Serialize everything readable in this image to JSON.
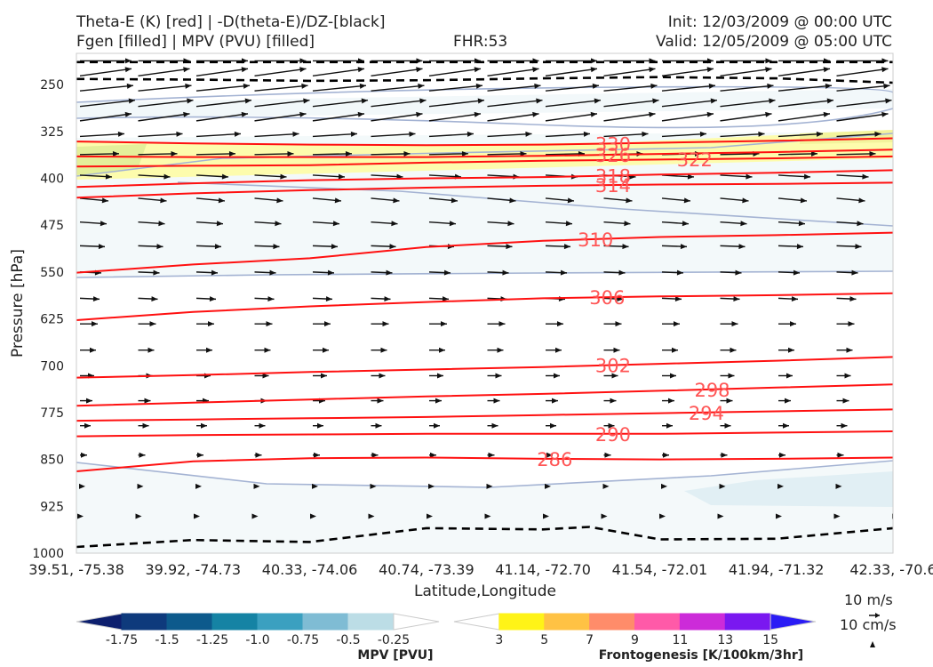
{
  "header": {
    "title_line1": "Theta-E (K) [red] | -D(theta-E)/DZ-[black]",
    "title_line2": "Fgen [filled] | MPV (PVU) [filled]",
    "fhr": "FHR:53",
    "init": "Init: 12/03/2009 @ 00:00 UTC",
    "valid": "Valid: 12/05/2009 @ 05:00 UTC"
  },
  "chart_data": {
    "type": "contour",
    "title": "Theta-E (K) [red] | -D(theta-E)/DZ-[black] / Fgen [filled] | MPV (PVU) [filled]",
    "xlabel": "Latitude,Longitude",
    "ylabel": "Pressure [hPa]",
    "x_ticks": [
      "39.51, -75.38",
      "39.92, -74.73",
      "40.33, -74.06",
      "40.74, -73.39",
      "41.14, -72.70",
      "41.54, -72.01",
      "41.94, -71.32",
      "42.33, -70.6"
    ],
    "y_ticks": [
      250,
      325,
      400,
      475,
      550,
      625,
      700,
      775,
      850,
      925,
      1000
    ],
    "ylim": [
      1000,
      200
    ],
    "y_inverted": true,
    "theta_e_contours": [
      {
        "level": "286",
        "x": [
          0,
          1,
          2,
          3,
          4,
          5,
          6,
          7
        ],
        "p": [
          869,
          853,
          848,
          847,
          849,
          850,
          849,
          847
        ]
      },
      {
        "level": "290",
        "x": [
          0,
          1,
          2,
          3,
          4,
          5,
          6,
          7
        ],
        "p": [
          813,
          811,
          810,
          809,
          809,
          809,
          807,
          805
        ]
      },
      {
        "level": "294",
        "x": [
          0,
          1,
          2,
          3,
          4,
          5,
          6,
          7
        ],
        "p": [
          788,
          786,
          784,
          782,
          779,
          776,
          773,
          770
        ]
      },
      {
        "level": "298",
        "x": [
          0,
          1,
          2,
          3,
          4,
          5,
          6,
          7
        ],
        "p": [
          764,
          759,
          754,
          749,
          745,
          740,
          735,
          730
        ]
      },
      {
        "level": "302",
        "x": [
          0,
          1,
          2,
          3,
          4,
          5,
          6,
          7
        ],
        "p": [
          719,
          715,
          710,
          706,
          702,
          697,
          692,
          686
        ]
      },
      {
        "level": "306",
        "x": [
          0,
          1,
          2,
          3,
          4,
          5,
          6,
          7
        ],
        "p": [
          627,
          614,
          605,
          598,
          592,
          589,
          587,
          584
        ]
      },
      {
        "level": "310",
        "x": [
          0,
          1,
          2,
          3,
          4,
          5,
          6,
          7
        ],
        "p": [
          551,
          538,
          528,
          510,
          500,
          494,
          491,
          487
        ]
      },
      {
        "level": "314",
        "x": [
          0,
          1,
          2,
          3,
          4,
          5,
          6,
          7
        ],
        "p": [
          431,
          424,
          419,
          415,
          412,
          410,
          409,
          407
        ]
      },
      {
        "level": "318",
        "x": [
          0,
          1,
          2,
          3,
          4,
          5,
          6,
          7
        ],
        "p": [
          414,
          408,
          403,
          400,
          398,
          394,
          391,
          387
        ]
      },
      {
        "level": "322",
        "x": [
          0,
          1,
          2,
          3,
          4,
          5,
          6,
          7
        ],
        "p": [
          381,
          380,
          379,
          375,
          372,
          370,
          368,
          365
        ]
      },
      {
        "level": "326",
        "x": [
          0,
          1,
          2,
          3,
          4,
          5,
          6,
          7
        ],
        "p": [
          365,
          366,
          366,
          366,
          364,
          361,
          358,
          354
        ]
      },
      {
        "level": "330",
        "x": [
          0,
          1,
          2,
          3,
          4,
          5,
          6,
          7
        ],
        "p": [
          341,
          344,
          346,
          347,
          346,
          343,
          340,
          336
        ]
      }
    ],
    "stability_zero_line": [
      {
        "x": [
          0,
          1,
          2,
          3,
          4,
          5,
          6,
          7
        ],
        "p": [
          214,
          214,
          214,
          214,
          214,
          214,
          214,
          214
        ]
      },
      {
        "x": [
          0,
          1,
          2,
          3,
          4,
          5,
          6,
          7
        ],
        "p": [
          241,
          242,
          244,
          243,
          240,
          238,
          240,
          247
        ]
      },
      {
        "x": [
          0,
          1,
          2,
          3,
          4,
          4.4,
          5,
          6,
          7
        ],
        "p": [
          990,
          979,
          982,
          960,
          962,
          958,
          978,
          977,
          960
        ]
      }
    ],
    "colorbar_mpv": {
      "label": "MPV [PVU]",
      "ticks": [
        "-1.75",
        "-1.5",
        "-1.25",
        "-1.0",
        "-0.75",
        "-0.5",
        "-0.25"
      ],
      "colors": [
        "#0d1f6e",
        "#0e3a7c",
        "#0d5a8c",
        "#1583a4",
        "#3ba0c0",
        "#7fbcd4",
        "#bcdde6",
        "#ffffff"
      ]
    },
    "colorbar_fgen": {
      "label": "Frontogenesis [K/100km/3hr]",
      "ticks": [
        "3",
        "5",
        "7",
        "9",
        "11",
        "13",
        "15"
      ],
      "colors": [
        "#ffffff",
        "#fff317",
        "#ffc244",
        "#ff8c6a",
        "#ff5aa8",
        "#cc2bd9",
        "#7a18f0",
        "#2a1cf5"
      ]
    },
    "wind_key": {
      "label1": "10 m/s",
      "label2": "10 cm/s"
    }
  }
}
